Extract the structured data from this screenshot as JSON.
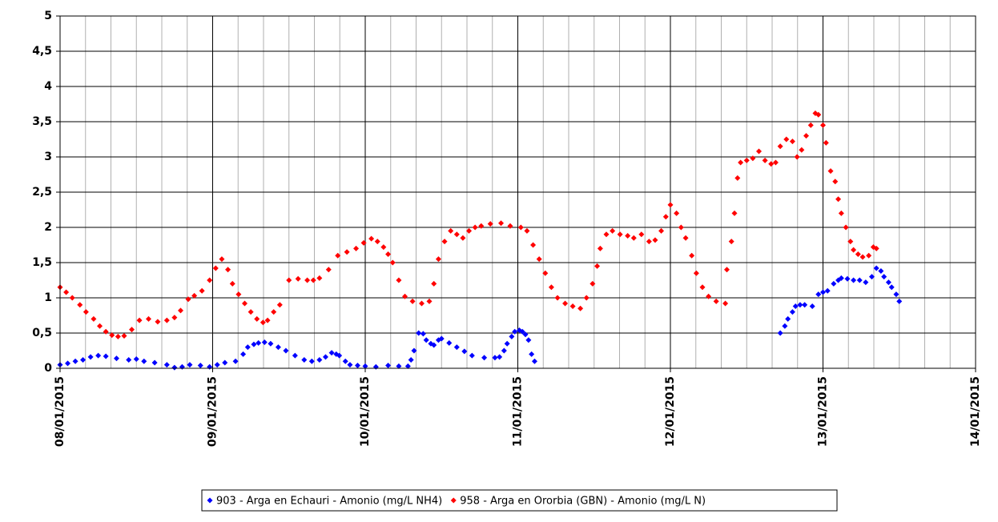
{
  "chart_data": {
    "type": "scatter",
    "xlim": [
      0,
      6
    ],
    "ylim": [
      0,
      5
    ],
    "xticks": [
      {
        "value": 0,
        "label": "08/01/2015"
      },
      {
        "value": 1,
        "label": "09/01/2015"
      },
      {
        "value": 2,
        "label": "10/01/2015"
      },
      {
        "value": 3,
        "label": "11/01/2015"
      },
      {
        "value": 4,
        "label": "12/01/2015"
      },
      {
        "value": 5,
        "label": "13/01/2015"
      },
      {
        "value": 6,
        "label": "14/01/2015"
      }
    ],
    "xminorticks": [
      0.1667,
      0.3333,
      0.5,
      0.6667,
      0.8333,
      1.1667,
      1.3333,
      1.5,
      1.6667,
      1.8333,
      2.1667,
      2.3333,
      2.5,
      2.6667,
      2.8333,
      3.1667,
      3.3333,
      3.5,
      3.6667,
      3.8333,
      4.1667,
      4.3333,
      4.5,
      4.6667,
      4.8333,
      5.1667,
      5.3333,
      5.5,
      5.6667,
      5.8333
    ],
    "yticks": [
      0,
      {
        "value": 0.5,
        "label": "0,5"
      },
      1,
      {
        "value": 1.5,
        "label": "1,5"
      },
      2,
      {
        "value": 2.5,
        "label": "2,5"
      },
      3,
      {
        "value": 3.5,
        "label": "3,5"
      },
      4,
      {
        "value": 4.5,
        "label": "4,5"
      },
      5
    ],
    "grid": true,
    "legend": "bottom",
    "series": [
      {
        "name": "903 - Arga en Echauri - Amonio (mg/L NH4)",
        "color": "#0000ff",
        "x": [
          0,
          0.05,
          0.1,
          0.15,
          0.2,
          0.25,
          0.3,
          0.37,
          0.45,
          0.5,
          0.55,
          0.62,
          0.7,
          0.75,
          0.8,
          0.85,
          0.92,
          0.98,
          1.03,
          1.08,
          1.15,
          1.2,
          1.23,
          1.27,
          1.3,
          1.34,
          1.38,
          1.43,
          1.48,
          1.54,
          1.6,
          1.65,
          1.7,
          1.74,
          1.78,
          1.81,
          1.83,
          1.87,
          1.9,
          1.95,
          2.0,
          2.07,
          2.15,
          2.22,
          2.28,
          2.3,
          2.32,
          2.35,
          2.38,
          2.4,
          2.43,
          2.45,
          2.48,
          2.5,
          2.55,
          2.6,
          2.65,
          2.7,
          2.78,
          2.85,
          2.88,
          2.91,
          2.93,
          2.96,
          2.98,
          3.01,
          3.03,
          3.05,
          3.07,
          3.09,
          3.11,
          4.72,
          4.75,
          4.77,
          4.8,
          4.82,
          4.85,
          4.88,
          4.93,
          4.97,
          5.0,
          5.03,
          5.07,
          5.1,
          5.12,
          5.16,
          5.2,
          5.24,
          5.28,
          5.32,
          5.35,
          5.38,
          5.4,
          5.43,
          5.45,
          5.48,
          5.5
        ],
        "values": [
          0.05,
          0.07,
          0.1,
          0.12,
          0.16,
          0.18,
          0.17,
          0.14,
          0.12,
          0.13,
          0.1,
          0.08,
          0.05,
          0.01,
          0.02,
          0.05,
          0.04,
          0.02,
          0.05,
          0.08,
          0.1,
          0.2,
          0.3,
          0.34,
          0.36,
          0.37,
          0.35,
          0.3,
          0.25,
          0.18,
          0.12,
          0.1,
          0.12,
          0.16,
          0.22,
          0.2,
          0.18,
          0.1,
          0.05,
          0.04,
          0.03,
          0.02,
          0.04,
          0.03,
          0.03,
          0.12,
          0.25,
          0.5,
          0.49,
          0.4,
          0.35,
          0.33,
          0.4,
          0.42,
          0.36,
          0.3,
          0.24,
          0.18,
          0.15,
          0.15,
          0.16,
          0.25,
          0.35,
          0.45,
          0.52,
          0.54,
          0.52,
          0.48,
          0.4,
          0.2,
          0.1,
          0.5,
          0.6,
          0.7,
          0.8,
          0.88,
          0.9,
          0.9,
          0.88,
          1.05,
          1.08,
          1.1,
          1.2,
          1.25,
          1.28,
          1.27,
          1.25,
          1.25,
          1.22,
          1.3,
          1.42,
          1.38,
          1.3,
          1.22,
          1.15,
          1.05,
          0.95
        ]
      },
      {
        "name": "958 - Arga en Ororbia (GBN) - Amonio (mg/L N)",
        "color": "#ff0000",
        "x": [
          0,
          0.04,
          0.08,
          0.13,
          0.17,
          0.22,
          0.26,
          0.3,
          0.34,
          0.38,
          0.42,
          0.47,
          0.52,
          0.58,
          0.64,
          0.7,
          0.75,
          0.79,
          0.84,
          0.88,
          0.93,
          0.98,
          1.02,
          1.06,
          1.1,
          1.13,
          1.17,
          1.21,
          1.25,
          1.29,
          1.33,
          1.36,
          1.4,
          1.44,
          1.5,
          1.56,
          1.62,
          1.66,
          1.7,
          1.76,
          1.82,
          1.88,
          1.94,
          1.99,
          2.04,
          2.08,
          2.12,
          2.15,
          2.18,
          2.22,
          2.26,
          2.31,
          2.37,
          2.42,
          2.45,
          2.48,
          2.52,
          2.56,
          2.6,
          2.64,
          2.68,
          2.72,
          2.76,
          2.82,
          2.89,
          2.95,
          3.02,
          3.06,
          3.1,
          3.14,
          3.18,
          3.22,
          3.26,
          3.31,
          3.36,
          3.41,
          3.45,
          3.49,
          3.52,
          3.54,
          3.58,
          3.62,
          3.67,
          3.72,
          3.76,
          3.81,
          3.86,
          3.9,
          3.94,
          3.97,
          4.0,
          4.04,
          4.07,
          4.1,
          4.14,
          4.17,
          4.21,
          4.25,
          4.3,
          4.36,
          4.37,
          4.4,
          4.42,
          4.44,
          4.46,
          4.5,
          4.54,
          4.58,
          4.62,
          4.66,
          4.69,
          4.72,
          4.76,
          4.8,
          4.83,
          4.86,
          4.89,
          4.92,
          4.95,
          4.97,
          5.0,
          5.02,
          5.05,
          5.08,
          5.1,
          5.12,
          5.15,
          5.18,
          5.2,
          5.23,
          5.26,
          5.3,
          5.33,
          5.35
        ],
        "values": [
          1.15,
          1.08,
          1.0,
          0.9,
          0.8,
          0.7,
          0.6,
          0.52,
          0.47,
          0.45,
          0.46,
          0.55,
          0.68,
          0.7,
          0.66,
          0.68,
          0.72,
          0.82,
          0.98,
          1.03,
          1.1,
          1.25,
          1.42,
          1.55,
          1.4,
          1.2,
          1.05,
          0.92,
          0.8,
          0.7,
          0.65,
          0.68,
          0.8,
          0.9,
          1.25,
          1.27,
          1.25,
          1.25,
          1.28,
          1.4,
          1.6,
          1.65,
          1.7,
          1.78,
          1.84,
          1.8,
          1.72,
          1.62,
          1.5,
          1.25,
          1.02,
          0.95,
          0.92,
          0.95,
          1.2,
          1.55,
          1.8,
          1.95,
          1.9,
          1.85,
          1.95,
          2.0,
          2.02,
          2.05,
          2.06,
          2.02,
          2.0,
          1.95,
          1.75,
          1.55,
          1.35,
          1.15,
          1.0,
          0.92,
          0.88,
          0.85,
          1.0,
          1.2,
          1.45,
          1.7,
          1.9,
          1.95,
          1.9,
          1.88,
          1.85,
          1.9,
          1.8,
          1.82,
          1.95,
          2.15,
          2.32,
          2.2,
          2.0,
          1.85,
          1.6,
          1.35,
          1.15,
          1.02,
          0.95,
          0.92,
          1.4,
          1.8,
          2.2,
          2.7,
          2.92,
          2.95,
          2.98,
          3.08,
          2.95,
          2.9,
          2.92,
          3.15,
          3.25,
          3.22,
          3.0,
          3.1,
          3.3,
          3.45,
          3.62,
          3.6,
          3.45,
          3.2,
          2.8,
          2.65,
          2.4,
          2.2,
          2.0,
          1.8,
          1.68,
          1.62,
          1.58,
          1.6,
          1.72,
          1.7
        ]
      }
    ]
  }
}
